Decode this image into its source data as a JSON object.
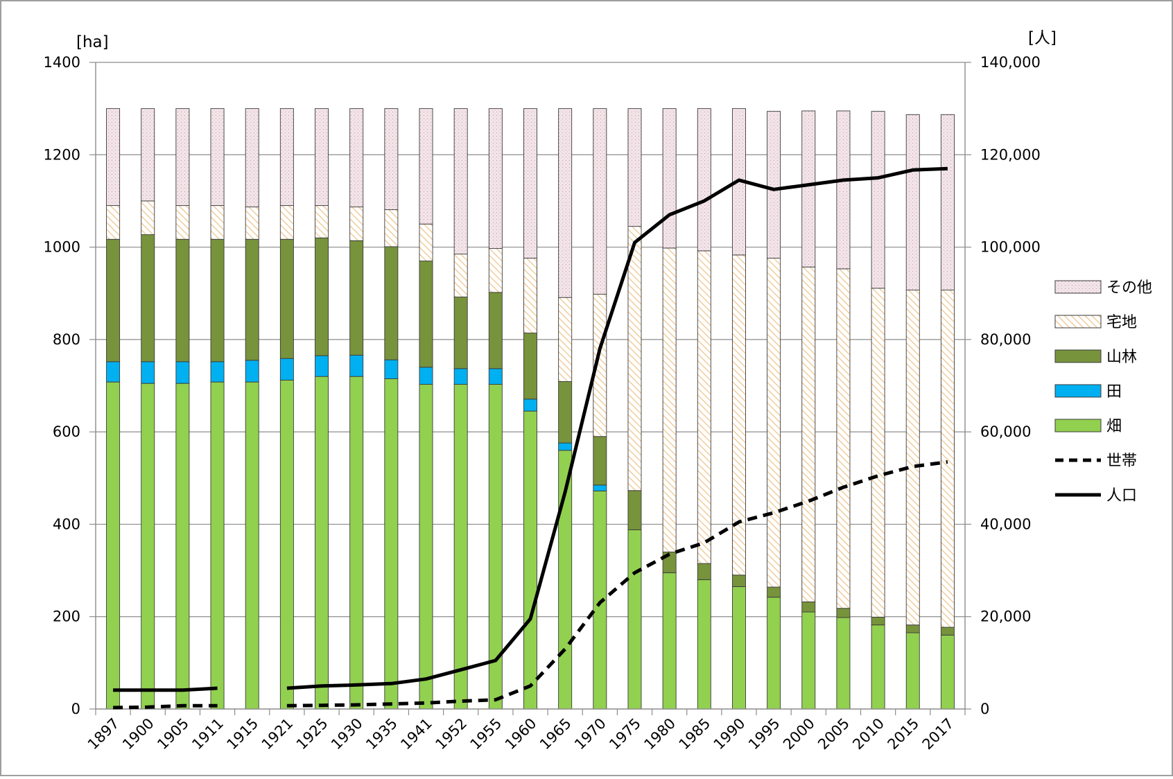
{
  "chart_data": {
    "type": "bar",
    "stacked": true,
    "categories": [
      "1897",
      "1900",
      "1905",
      "1911",
      "1915",
      "1921",
      "1925",
      "1930",
      "1935",
      "1941",
      "1952",
      "1955",
      "1960",
      "1965",
      "1970",
      "1975",
      "1980",
      "1985",
      "1990",
      "1995",
      "2000",
      "2005",
      "2010",
      "2015",
      "2017"
    ],
    "y_left": {
      "unit": "[ha]",
      "range": [
        0,
        1400
      ],
      "ticks": [
        "0",
        "200",
        "400",
        "600",
        "800",
        "1000",
        "1200",
        "1400"
      ]
    },
    "y_right": {
      "unit": "[人]",
      "range": [
        0,
        140000
      ],
      "ticks": [
        "0",
        "20,000",
        "40,000",
        "60,000",
        "80,000",
        "100,000",
        "120,000",
        "140,000"
      ]
    },
    "grid": "horizontal",
    "legend_position": "right",
    "series": [
      {
        "name": "畑",
        "axis": "left",
        "kind": "bar",
        "color": "#92d050",
        "values": [
          708,
          705,
          705,
          708,
          708,
          712,
          720,
          720,
          715,
          703,
          703,
          703,
          645,
          560,
          472,
          388,
          295,
          280,
          265,
          242,
          210,
          198,
          182,
          165,
          160
        ]
      },
      {
        "name": "田",
        "axis": "left",
        "kind": "bar",
        "color": "#00b0f0",
        "values": [
          44,
          47,
          47,
          44,
          47,
          47,
          45,
          46,
          41,
          37,
          34,
          34,
          26,
          16,
          13,
          0,
          0,
          0,
          0,
          0,
          0,
          0,
          0,
          0,
          0
        ]
      },
      {
        "name": "山林",
        "axis": "left",
        "kind": "bar",
        "color": "#77933c",
        "values": [
          265,
          275,
          265,
          265,
          262,
          258,
          255,
          248,
          245,
          230,
          155,
          165,
          143,
          133,
          105,
          85,
          45,
          35,
          25,
          22,
          22,
          20,
          17,
          17,
          17
        ]
      },
      {
        "name": "宅地",
        "axis": "left",
        "kind": "bar",
        "pattern": "hatch",
        "color": "#f0c890",
        "values": [
          73,
          73,
          73,
          73,
          70,
          73,
          70,
          73,
          80,
          80,
          93,
          95,
          162,
          182,
          308,
          572,
          658,
          677,
          693,
          712,
          725,
          735,
          712,
          725,
          730
        ]
      },
      {
        "name": "その他",
        "axis": "left",
        "kind": "bar",
        "pattern": "dots",
        "color": "#f2e4e8",
        "values": [
          210,
          200,
          210,
          210,
          213,
          210,
          210,
          213,
          219,
          250,
          315,
          303,
          324,
          409,
          402,
          255,
          302,
          308,
          317,
          318,
          338,
          342,
          383,
          380,
          380
        ]
      },
      {
        "name": "世帯",
        "axis": "right",
        "kind": "line",
        "style": "dashed",
        "color": "#000000",
        "values": [
          300,
          400,
          700,
          700,
          null,
          700,
          800,
          900,
          1100,
          1300,
          1700,
          2000,
          5000,
          13000,
          23000,
          29500,
          33500,
          36000,
          40500,
          42500,
          45000,
          48000,
          50500,
          52500,
          53500
        ]
      },
      {
        "name": "人口",
        "axis": "right",
        "kind": "line",
        "style": "solid",
        "color": "#000000",
        "values": [
          4100,
          4100,
          4100,
          4500,
          null,
          4500,
          5000,
          5200,
          5500,
          6500,
          8500,
          10500,
          19500,
          47000,
          78000,
          101000,
          107000,
          110000,
          114500,
          112500,
          113500,
          114500,
          115000,
          116700,
          117000
        ]
      }
    ],
    "legend_order": [
      "その他",
      "宅地",
      "山林",
      "田",
      "畑",
      "世帯",
      "人口"
    ]
  }
}
